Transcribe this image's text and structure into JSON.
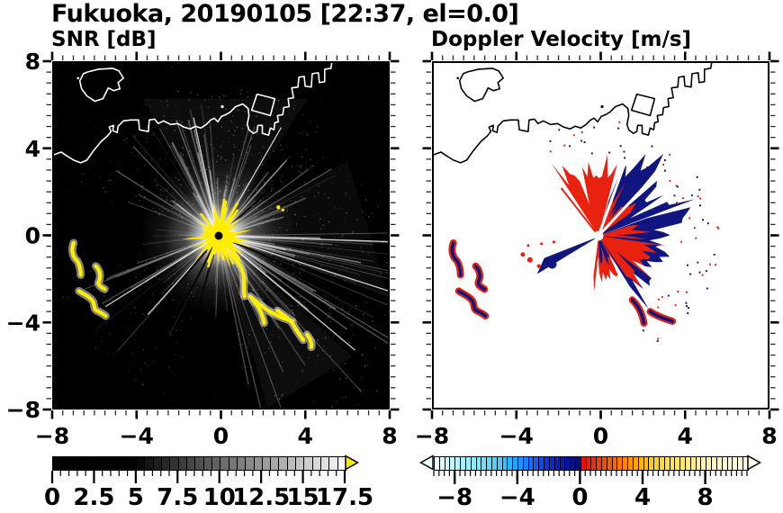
{
  "title": "Fukuoka, 20190105 [22:37, el=0.0]",
  "chart_data": [
    {
      "type": "heatmap",
      "panel": "left",
      "title": "SNR [dB]",
      "xlim": [
        -8,
        8
      ],
      "ylim": [
        -8,
        8
      ],
      "x_tick_values": [
        -8,
        -4,
        0,
        4,
        8
      ],
      "x_tick_labels": [
        "−8",
        "−4",
        "0",
        "4",
        "8"
      ],
      "y_tick_values": [
        8,
        4,
        0,
        -4,
        -8
      ],
      "y_tick_labels": [
        "8",
        "4",
        "0",
        "−4",
        "−8"
      ],
      "minor_tick_step": 0.5,
      "grid": false,
      "background_color": "#000000",
      "coastline_color": "#ffffff",
      "radar_center_xy": [
        -0.1,
        0.0
      ],
      "colorbar": {
        "min": 0,
        "max": 17.5,
        "cell_step": 0.5,
        "tick_values": [
          0,
          2.5,
          5,
          7.5,
          10,
          12.5,
          15,
          17.5
        ],
        "tick_labels": [
          "0",
          "2.5",
          "5",
          "7.5",
          "10",
          "12.5",
          "15",
          "17.5"
        ],
        "scale": "grayscale-black-to-white",
        "over_arrow_color": "#ffe800"
      },
      "features": {
        "center_blob_color": "#ffee00",
        "clutter_color": "#ffee00",
        "ray_color": "#ffffff",
        "ray_fans": [
          {
            "az": [
              -70,
              78
            ],
            "n": 60,
            "r": [
              1.9,
              6.3
            ],
            "o": [
              0.06,
              0.38
            ],
            "w": [
              0.7,
              2.2
            ]
          },
          {
            "az": [
              78,
              170
            ],
            "n": 45,
            "r": [
              2.5,
              10.3
            ],
            "o": [
              0.08,
              0.5
            ],
            "w": [
              0.7,
              2.0
            ]
          },
          {
            "az": [
              172,
              202
            ],
            "n": 9,
            "r": [
              1.7,
              4.6
            ],
            "o": [
              0.06,
              0.25
            ],
            "w": [
              0.8,
              1.5
            ]
          },
          {
            "az": [
              203,
              256
            ],
            "n": 14,
            "r": [
              2.5,
              7.8
            ],
            "o": [
              0.07,
              0.35
            ],
            "w": [
              0.7,
              1.6
            ]
          },
          {
            "az": [
              257,
              288
            ],
            "n": 7,
            "r": [
              1.3,
              3.8
            ],
            "o": [
              0.05,
              0.2
            ],
            "w": [
              0.7,
              1.3
            ]
          }
        ],
        "bright_rays_az_len": [
          [
            238,
            6.3
          ],
          [
            222,
            5.0
          ],
          [
            108,
            9.9
          ],
          [
            92,
            10.5
          ],
          [
            130,
            8.4
          ],
          [
            30,
            5.9
          ],
          [
            -12,
            5.7
          ]
        ],
        "dark_spokes_az_len": [
          [
            48,
            7.8
          ],
          [
            113,
            9.0
          ],
          [
            196,
            5.0
          ],
          [
            207,
            5.5
          ],
          [
            220,
            4.7
          ]
        ],
        "clutter_arcs_xy": [
          [
            -7.1,
            -0.3
          ],
          [
            -6.7,
            -1.9
          ],
          [
            -6.0,
            -1.4
          ],
          [
            -5.6,
            -2.5
          ],
          [
            -6.8,
            -2.6
          ],
          [
            -5.5,
            -3.7
          ],
          [
            1.5,
            -3.0
          ],
          [
            2.1,
            -4.2
          ],
          [
            2.4,
            -3.6
          ],
          [
            3.5,
            -4.0
          ]
        ],
        "clutter_chain_from_to": [
          [
            0.4,
            -0.8
          ],
          [
            3.6,
            -4.3
          ]
        ]
      }
    },
    {
      "type": "heatmap",
      "panel": "right",
      "title": "Doppler Velocity [m/s]",
      "xlim": [
        -8,
        8
      ],
      "ylim": [
        -8,
        8
      ],
      "x_tick_values": [
        -8,
        -4,
        0,
        4,
        8
      ],
      "x_tick_labels": [
        "−8",
        "−4",
        "0",
        "4",
        "8"
      ],
      "y_tick_values": [
        8,
        4,
        0,
        -4,
        -8
      ],
      "y_tick_labels": [],
      "minor_tick_step": 0.5,
      "grid": false,
      "background_color": "#ffffff",
      "coastline_color": "#000000",
      "radar_center_xy": [
        -0.1,
        0.0
      ],
      "colorbar": {
        "min": -9.3333,
        "max": 10.6667,
        "cell_step": 0.3333,
        "tick_values": [
          -8,
          -4,
          0,
          4,
          8
        ],
        "tick_labels": [
          "−8",
          "−4",
          "0",
          "4",
          "8"
        ],
        "scale": "diverging cyan-blue-navy | red-orange-yellow-cream",
        "under_arrow_color": "#eaffff",
        "over_arrow_color": "#fffcea",
        "stops": [
          [
            -9.33,
            "#e8ffff"
          ],
          [
            -8,
            "#bdf6ff"
          ],
          [
            -6.5,
            "#7de8ff"
          ],
          [
            -5,
            "#38c9ff"
          ],
          [
            -4,
            "#189eff"
          ],
          [
            -3,
            "#1765ff"
          ],
          [
            -2.2,
            "#1133e8"
          ],
          [
            -1.4,
            "#0c1cb8"
          ],
          [
            -0.6,
            "#091285"
          ],
          [
            -0.05,
            "#070e6e"
          ],
          [
            0.05,
            "#e01000"
          ],
          [
            0.8,
            "#ee2a07"
          ],
          [
            1.8,
            "#fc5a00"
          ],
          [
            2.8,
            "#ff8500"
          ],
          [
            3.8,
            "#ffb300"
          ],
          [
            4.8,
            "#ffd21e"
          ],
          [
            6,
            "#ffe55e"
          ],
          [
            7.5,
            "#fff29a"
          ],
          [
            9,
            "#fff9c8"
          ],
          [
            10.67,
            "#fffce8"
          ]
        ]
      },
      "features": {
        "toward_color": "#0f1680",
        "away_color": "#e8220f",
        "lobes": [
          {
            "color_key": "toward",
            "az": [
              16,
              70
            ],
            "r_base": 3.4,
            "r_var": 1.35
          },
          {
            "color_key": "toward",
            "az": [
              70,
              150
            ],
            "r_base": 2.9,
            "r_var": 1.3
          },
          {
            "color_key": "away",
            "az": [
              -33,
              17
            ],
            "r_base": 3.1,
            "r_var": 0.85
          },
          {
            "color_key": "away",
            "az": [
              21,
              56
            ],
            "r_base": 2.0,
            "r_var": 0.75
          },
          {
            "color_key": "away",
            "az": [
              72,
              96
            ],
            "r_base": 1.75,
            "r_var": 0.6
          },
          {
            "color_key": "away",
            "az": [
              98,
              148
            ],
            "r_base": 2.25,
            "r_var": 0.85
          },
          {
            "color_key": "away",
            "az": [
              148,
              188
            ],
            "r_base": 1.95,
            "r_var": 0.6
          },
          {
            "color_key": "toward",
            "az": [
              152,
              178
            ],
            "r_base": 1.05,
            "r_var": 0.4
          }
        ],
        "white_gaps_az_len": [
          [
            20,
            4.0
          ],
          [
            43,
            4.7
          ]
        ],
        "wedge_az": 237
      }
    }
  ]
}
